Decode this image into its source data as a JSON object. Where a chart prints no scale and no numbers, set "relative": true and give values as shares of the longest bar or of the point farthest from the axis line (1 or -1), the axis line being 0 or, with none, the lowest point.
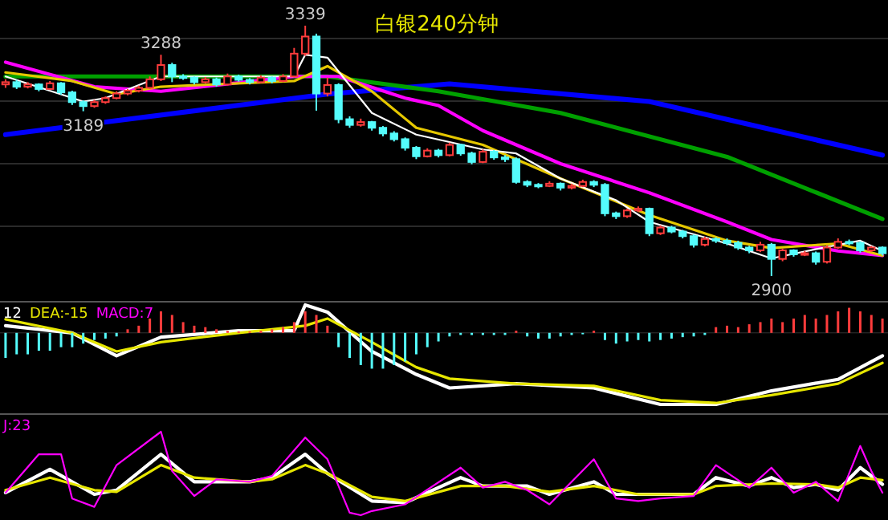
{
  "chart_data": [
    {
      "type": "candlestick",
      "title": "白银240分钟",
      "grid": true,
      "categories": [
        null,
        null,
        null,
        null,
        null,
        null,
        null,
        null,
        null,
        null,
        null,
        null,
        null,
        null,
        null,
        null,
        null,
        null,
        null,
        null,
        null,
        null,
        null,
        null,
        null,
        null,
        null,
        null,
        null,
        null,
        null,
        null,
        null,
        null,
        null,
        null,
        null,
        null,
        null,
        null,
        null,
        null,
        null,
        null,
        null,
        null,
        null,
        null,
        null,
        null,
        null,
        null,
        null,
        null,
        null,
        null,
        null,
        null,
        null,
        null,
        null,
        null,
        null,
        null,
        null,
        null,
        null,
        null,
        null,
        null,
        null,
        null,
        null,
        null,
        null,
        null,
        null,
        null,
        null,
        null
      ],
      "ohlc": [
        [
          3236,
          3245,
          3230,
          3240
        ],
        [
          3240,
          3244,
          3228,
          3232
        ],
        [
          3232,
          3240,
          3229,
          3236
        ],
        [
          3236,
          3238,
          3224,
          3228
        ],
        [
          3228,
          3242,
          3226,
          3238
        ],
        [
          3238,
          3240,
          3218,
          3222
        ],
        [
          3222,
          3225,
          3200,
          3205
        ],
        [
          3205,
          3208,
          3189,
          3198
        ],
        [
          3198,
          3209,
          3195,
          3205
        ],
        [
          3205,
          3215,
          3202,
          3212
        ],
        [
          3212,
          3224,
          3210,
          3220
        ],
        [
          3220,
          3228,
          3217,
          3225
        ],
        [
          3225,
          3234,
          3222,
          3230
        ],
        [
          3230,
          3250,
          3228,
          3245
        ],
        [
          3245,
          3288,
          3242,
          3270
        ],
        [
          3270,
          3274,
          3240,
          3250
        ],
        [
          3250,
          3254,
          3244,
          3248
        ],
        [
          3248,
          3250,
          3236,
          3240
        ],
        [
          3240,
          3249,
          3238,
          3245
        ],
        [
          3245,
          3248,
          3232,
          3236
        ],
        [
          3236,
          3255,
          3234,
          3250
        ],
        [
          3250,
          3253,
          3241,
          3244
        ],
        [
          3244,
          3247,
          3236,
          3240
        ],
        [
          3240,
          3252,
          3238,
          3248
        ],
        [
          3248,
          3250,
          3238,
          3242
        ],
        [
          3242,
          3254,
          3240,
          3250
        ],
        [
          3250,
          3300,
          3248,
          3290
        ],
        [
          3290,
          3339,
          3286,
          3320
        ],
        [
          3320,
          3325,
          3190,
          3220
        ],
        [
          3220,
          3248,
          3215,
          3235
        ],
        [
          3235,
          3238,
          3168,
          3175
        ],
        [
          3175,
          3180,
          3160,
          3165
        ],
        [
          3165,
          3176,
          3162,
          3170
        ],
        [
          3170,
          3172,
          3155,
          3160
        ],
        [
          3160,
          3163,
          3145,
          3150
        ],
        [
          3150,
          3154,
          3136,
          3140
        ],
        [
          3140,
          3143,
          3120,
          3125
        ],
        [
          3125,
          3128,
          3105,
          3110
        ],
        [
          3110,
          3124,
          3108,
          3120
        ],
        [
          3120,
          3123,
          3108,
          3112
        ],
        [
          3112,
          3134,
          3110,
          3130
        ],
        [
          3130,
          3132,
          3111,
          3115
        ],
        [
          3115,
          3118,
          3096,
          3100
        ],
        [
          3100,
          3122,
          3098,
          3118
        ],
        [
          3118,
          3121,
          3104,
          3108
        ],
        [
          3108,
          3112,
          3100,
          3105
        ],
        [
          3105,
          3108,
          3062,
          3065
        ],
        [
          3065,
          3068,
          3056,
          3060
        ],
        [
          3060,
          3063,
          3054,
          3058
        ],
        [
          3058,
          3066,
          3056,
          3062
        ],
        [
          3062,
          3064,
          3050,
          3055
        ],
        [
          3055,
          3062,
          3052,
          3058
        ],
        [
          3058,
          3069,
          3056,
          3065
        ],
        [
          3065,
          3068,
          3056,
          3060
        ],
        [
          3060,
          3063,
          3005,
          3010
        ],
        [
          3010,
          3013,
          3000,
          3005
        ],
        [
          3005,
          3018,
          3002,
          3015
        ],
        [
          3015,
          3022,
          3012,
          3018
        ],
        [
          3018,
          3020,
          2970,
          2975
        ],
        [
          2975,
          2989,
          2972,
          2985
        ],
        [
          2985,
          2988,
          2975,
          2978
        ],
        [
          2978,
          2981,
          2966,
          2970
        ],
        [
          2970,
          2973,
          2950,
          2955
        ],
        [
          2955,
          2969,
          2952,
          2965
        ],
        [
          2965,
          2968,
          2958,
          2962
        ],
        [
          2962,
          2966,
          2954,
          2958
        ],
        [
          2958,
          2962,
          2946,
          2950
        ],
        [
          2950,
          2953,
          2940,
          2945
        ],
        [
          2945,
          2960,
          2942,
          2955
        ],
        [
          2955,
          2958,
          2900,
          2930
        ],
        [
          2930,
          2948,
          2926,
          2945
        ],
        [
          2945,
          2947,
          2934,
          2938
        ],
        [
          2938,
          2944,
          2935,
          2940
        ],
        [
          2940,
          2943,
          2920,
          2925
        ],
        [
          2925,
          2954,
          2922,
          2950
        ],
        [
          2950,
          2966,
          2948,
          2960
        ],
        [
          2960,
          2964,
          2954,
          2958
        ],
        [
          2958,
          2961,
          2941,
          2945
        ],
        [
          2945,
          2953,
          2942,
          2950
        ],
        [
          2950,
          2952,
          2936,
          2940
        ]
      ],
      "colors": [
        "#ff3c3c",
        "#54fcfc",
        "#ff3c3c",
        "#54fcfc",
        "#ff3c3c",
        "#54fcfc",
        "#54fcfc",
        "#54fcfc",
        "#ff3c3c",
        "#ff3c3c",
        "#ff3c3c",
        "#ff3c3c",
        "#ff3c3c",
        "#ff3c3c",
        "#ff3c3c",
        "#54fcfc",
        "#54fcfc",
        "#54fcfc",
        "#ff3c3c",
        "#54fcfc",
        "#ff3c3c",
        "#54fcfc",
        "#54fcfc",
        "#ff3c3c",
        "#54fcfc",
        "#ff3c3c",
        "#ff3c3c",
        "#ff3c3c",
        "#54fcfc",
        "#ff3c3c",
        "#54fcfc",
        "#54fcfc",
        "#ff3c3c",
        "#54fcfc",
        "#54fcfc",
        "#54fcfc",
        "#54fcfc",
        "#54fcfc",
        "#ff3c3c",
        "#54fcfc",
        "#ff3c3c",
        "#54fcfc",
        "#54fcfc",
        "#ff3c3c",
        "#54fcfc",
        "#54fcfc",
        "#54fcfc",
        "#54fcfc",
        "#54fcfc",
        "#ff3c3c",
        "#54fcfc",
        "#ff3c3c",
        "#ff3c3c",
        "#54fcfc",
        "#54fcfc",
        "#54fcfc",
        "#ff3c3c",
        "#ff3c3c",
        "#54fcfc",
        "#ff3c3c",
        "#54fcfc",
        "#54fcfc",
        "#54fcfc",
        "#ff3c3c",
        "#54fcfc",
        "#54fcfc",
        "#54fcfc",
        "#54fcfc",
        "#ff3c3c",
        "#54fcfc",
        "#ff3c3c",
        "#54fcfc",
        "#ff3c3c",
        "#54fcfc",
        "#ff3c3c",
        "#ff3c3c",
        "#54fcfc",
        "#54fcfc",
        "#ff3c3c",
        "#54fcfc"
      ],
      "series": [
        {
          "type": "line",
          "color": "#0000ff",
          "values": [
            3148,
            null,
            null,
            null,
            null,
            null,
            null,
            null,
            null,
            null,
            null,
            null,
            null,
            null,
            null,
            null,
            null,
            null,
            null,
            null,
            null,
            null,
            null,
            null,
            null,
            null,
            null,
            null,
            null,
            3219,
            null,
            null,
            null,
            null,
            null,
            null,
            null,
            null,
            null,
            null,
            3237,
            null,
            null,
            null,
            null,
            null,
            null,
            null,
            null,
            null,
            null,
            null,
            null,
            null,
            null,
            null,
            null,
            null,
            3206,
            null,
            null,
            null,
            null,
            null,
            null,
            null,
            null,
            null,
            null,
            null,
            null,
            null,
            null,
            null,
            null,
            null,
            null,
            null,
            null,
            3112
          ]
        },
        {
          "type": "line",
          "color": "#00a000",
          "values": [
            3250,
            null,
            null,
            null,
            null,
            null,
            null,
            null,
            null,
            null,
            null,
            null,
            null,
            null,
            null,
            null,
            null,
            null,
            null,
            null,
            null,
            null,
            null,
            null,
            null,
            null,
            null,
            null,
            null,
            3250,
            null,
            null,
            null,
            null,
            null,
            null,
            null,
            null,
            null,
            3224,
            null,
            null,
            null,
            null,
            null,
            null,
            null,
            null,
            null,
            null,
            3186,
            null,
            null,
            null,
            null,
            null,
            null,
            null,
            null,
            null,
            null,
            null,
            null,
            null,
            null,
            3109,
            null,
            null,
            null,
            null,
            null,
            null,
            null,
            null,
            null,
            null,
            null,
            null,
            null,
            3000
          ]
        },
        {
          "type": "line",
          "color": "#ff00ff",
          "values": [
            3275,
            null,
            null,
            null,
            null,
            null,
            null,
            null,
            3232,
            null,
            null,
            null,
            null,
            null,
            3224,
            null,
            null,
            null,
            null,
            null,
            null,
            null,
            null,
            null,
            null,
            null,
            3250,
            null,
            null,
            null,
            3250,
            null,
            null,
            null,
            null,
            null,
            3212,
            null,
            null,
            3199,
            null,
            null,
            null,
            3155,
            null,
            null,
            null,
            null,
            null,
            null,
            3097,
            null,
            null,
            null,
            null,
            null,
            null,
            null,
            3046,
            null,
            null,
            null,
            null,
            null,
            null,
            2995,
            null,
            null,
            null,
            2964,
            null,
            null,
            null,
            null,
            null,
            2944,
            null,
            null,
            null,
            2936
          ]
        },
        {
          "type": "line",
          "color": "#e6c800",
          "values": [
            3257,
            null,
            null,
            null,
            null,
            null,
            3242,
            null,
            null,
            null,
            3219,
            null,
            null,
            null,
            3232,
            null,
            null,
            null,
            null,
            null,
            null,
            null,
            null,
            null,
            null,
            null,
            3242,
            null,
            null,
            3268,
            null,
            null,
            null,
            3224,
            null,
            null,
            null,
            3160,
            null,
            null,
            null,
            null,
            null,
            3130,
            null,
            null,
            null,
            null,
            null,
            null,
            3071,
            null,
            null,
            null,
            null,
            null,
            null,
            null,
            3007,
            null,
            null,
            null,
            null,
            null,
            null,
            2962,
            null,
            null,
            null,
            2949,
            null,
            null,
            null,
            null,
            null,
            2957,
            null,
            null,
            null,
            2936
          ]
        },
        {
          "type": "line",
          "color": "#ffffff",
          "values": [
            3250,
            null,
            null,
            null,
            null,
            null,
            null,
            3206,
            null,
            3212,
            null,
            null,
            null,
            null,
            3250,
            null,
            null,
            null,
            null,
            null,
            null,
            null,
            null,
            null,
            null,
            null,
            3250,
            3288,
            null,
            3283,
            null,
            null,
            null,
            3186,
            null,
            null,
            null,
            3148,
            null,
            null,
            null,
            null,
            null,
            3122,
            null,
            null,
            3115,
            null,
            null,
            null,
            3071,
            null,
            null,
            null,
            null,
            3033,
            null,
            null,
            2995,
            null,
            null,
            null,
            null,
            null,
            null,
            2957,
            null,
            null,
            null,
            2931,
            null,
            null,
            null,
            null,
            2951,
            null,
            null,
            2962,
            null,
            2944
          ]
        }
      ],
      "annotations": [
        {
          "text": "3339",
          "y": 3339
        },
        {
          "text": "3288",
          "y": 3288
        },
        {
          "text": "3189",
          "y": 3189
        },
        {
          "text": "2900",
          "y": 2900
        }
      ]
    },
    {
      "type": "bar",
      "relative": true,
      "categories": [
        null,
        null,
        null,
        null,
        null,
        null,
        null,
        null,
        null,
        null,
        null,
        null,
        null,
        null,
        null,
        null,
        null,
        null,
        null,
        null,
        null,
        null,
        null,
        null,
        null,
        null,
        null,
        null,
        null,
        null,
        null,
        null,
        null,
        null,
        null,
        null,
        null,
        null,
        null,
        null,
        null,
        null,
        null,
        null,
        null,
        null,
        null,
        null,
        null,
        null,
        null,
        null,
        null,
        null,
        null,
        null,
        null,
        null,
        null,
        null,
        null,
        null,
        null,
        null,
        null,
        null,
        null,
        null,
        null,
        null,
        null,
        null,
        null,
        null,
        null,
        null,
        null,
        null,
        null,
        null
      ],
      "series": [
        {
          "name": "12",
          "type": "line",
          "color": "#ffffff",
          "values": [
            0.1,
            null,
            null,
            null,
            null,
            null,
            0,
            null,
            null,
            null,
            -0.32,
            null,
            null,
            null,
            -0.06,
            null,
            null,
            null,
            null,
            null,
            null,
            0.03,
            null,
            null,
            null,
            null,
            0.03,
            0.39,
            null,
            0.29,
            null,
            null,
            null,
            -0.26,
            null,
            null,
            null,
            -0.58,
            null,
            null,
            -0.77,
            null,
            null,
            null,
            null,
            null,
            -0.71,
            null,
            null,
            null,
            null,
            null,
            null,
            -0.77,
            null,
            null,
            null,
            null,
            null,
            -1,
            null,
            null,
            null,
            null,
            -1,
            null,
            null,
            null,
            null,
            -0.81,
            null,
            null,
            null,
            null,
            null,
            -0.65,
            null,
            null,
            null,
            -0.32
          ]
        },
        {
          "name": "DEA:-15",
          "type": "line",
          "color": "#e6e600",
          "values": [
            0.19,
            null,
            null,
            null,
            null,
            null,
            0,
            null,
            null,
            null,
            -0.26,
            null,
            null,
            null,
            -0.13,
            null,
            null,
            null,
            null,
            null,
            null,
            0,
            null,
            null,
            null,
            null,
            null,
            0.1,
            null,
            0.2,
            null,
            null,
            null,
            -0.13,
            null,
            null,
            null,
            -0.48,
            null,
            null,
            -0.64,
            null,
            null,
            null,
            null,
            null,
            -0.71,
            null,
            null,
            null,
            null,
            null,
            null,
            -0.74,
            null,
            null,
            null,
            null,
            null,
            -0.94,
            null,
            null,
            null,
            null,
            -0.98,
            null,
            null,
            null,
            null,
            -0.87,
            null,
            null,
            null,
            null,
            null,
            -0.71,
            null,
            null,
            null,
            -0.42
          ]
        },
        {
          "name": "MACD:7",
          "type": "bar",
          "color": "#ff00ff",
          "values": [
            -0.35,
            -0.3,
            -0.3,
            -0.25,
            -0.25,
            -0.2,
            -0.2,
            -0.15,
            -0.1,
            -0.08,
            -0.05,
            0.05,
            0.1,
            0.2,
            0.3,
            0.25,
            0.15,
            0.1,
            0.08,
            0.05,
            0.03,
            0.02,
            0.02,
            0.03,
            0.05,
            0.08,
            0.15,
            0.3,
            0.25,
            0.1,
            -0.2,
            -0.35,
            -0.45,
            -0.5,
            -0.5,
            -0.45,
            -0.4,
            -0.3,
            -0.2,
            -0.12,
            -0.05,
            -0.03,
            -0.03,
            -0.03,
            -0.03,
            -0.03,
            0.03,
            -0.05,
            -0.08,
            -0.08,
            -0.05,
            -0.03,
            -0.02,
            0.03,
            -0.1,
            -0.15,
            -0.12,
            -0.1,
            -0.12,
            -0.1,
            -0.08,
            -0.06,
            -0.05,
            -0.03,
            0.08,
            0.1,
            0.08,
            0.12,
            0.15,
            0.2,
            0.15,
            0.2,
            0.25,
            0.2,
            0.25,
            0.3,
            0.35,
            0.3,
            0.25,
            0.2
          ],
          "colors": [
            "#54fcfc",
            "#54fcfc",
            "#54fcfc",
            "#54fcfc",
            "#54fcfc",
            "#54fcfc",
            "#54fcfc",
            "#54fcfc",
            "#54fcfc",
            "#54fcfc",
            "#54fcfc",
            "#ff3c3c",
            "#ff3c3c",
            "#ff3c3c",
            "#ff3c3c",
            "#ff3c3c",
            "#ff3c3c",
            "#ff3c3c",
            "#ff3c3c",
            "#ff3c3c",
            "#ff3c3c",
            "#ff3c3c",
            "#ff3c3c",
            "#ff3c3c",
            "#ff3c3c",
            "#ff3c3c",
            "#ff3c3c",
            "#ff3c3c",
            "#ff3c3c",
            "#ff3c3c",
            "#54fcfc",
            "#54fcfc",
            "#54fcfc",
            "#54fcfc",
            "#54fcfc",
            "#54fcfc",
            "#54fcfc",
            "#54fcfc",
            "#54fcfc",
            "#54fcfc",
            "#54fcfc",
            "#54fcfc",
            "#54fcfc",
            "#54fcfc",
            "#54fcfc",
            "#54fcfc",
            "#ff3c3c",
            "#54fcfc",
            "#54fcfc",
            "#54fcfc",
            "#54fcfc",
            "#54fcfc",
            "#54fcfc",
            "#ff3c3c",
            "#54fcfc",
            "#54fcfc",
            "#54fcfc",
            "#54fcfc",
            "#54fcfc",
            "#54fcfc",
            "#54fcfc",
            "#54fcfc",
            "#54fcfc",
            "#54fcfc",
            "#ff3c3c",
            "#ff3c3c",
            "#ff3c3c",
            "#ff3c3c",
            "#ff3c3c",
            "#ff3c3c",
            "#ff3c3c",
            "#ff3c3c",
            "#ff3c3c",
            "#ff3c3c",
            "#ff3c3c",
            "#ff3c3c",
            "#ff3c3c",
            "#ff3c3c",
            "#ff3c3c",
            "#ff3c3c"
          ]
        }
      ]
    },
    {
      "type": "line",
      "relative": true,
      "categories": [
        null,
        null,
        null,
        null,
        null,
        null,
        null,
        null,
        null,
        null,
        null,
        null,
        null,
        null,
        null,
        null,
        null,
        null,
        null,
        null,
        null,
        null,
        null,
        null,
        null,
        null,
        null,
        null,
        null,
        null,
        null,
        null,
        null,
        null,
        null,
        null,
        null,
        null,
        null,
        null,
        null,
        null,
        null,
        null,
        null,
        null,
        null,
        null,
        null,
        null,
        null,
        null,
        null,
        null,
        null,
        null,
        null,
        null,
        null,
        null,
        null,
        null,
        null,
        null,
        null,
        null,
        null,
        null,
        null,
        null,
        null,
        null,
        null,
        null,
        null,
        null,
        null,
        null,
        null,
        null
      ],
      "series": [
        {
          "color": "#ffffff",
          "values": [
            0.27,
            null,
            null,
            null,
            0.55,
            null,
            null,
            null,
            0.25,
            null,
            0.3,
            null,
            null,
            null,
            0.73,
            null,
            null,
            0.4,
            null,
            0.4,
            null,
            null,
            0.4,
            null,
            0.45,
            null,
            null,
            0.73,
            null,
            0.5,
            null,
            null,
            null,
            0.17,
            null,
            null,
            0.15,
            null,
            null,
            null,
            null,
            0.45,
            null,
            0.35,
            null,
            null,
            null,
            0.35,
            null,
            0.25,
            null,
            null,
            null,
            0.4,
            null,
            0.25,
            null,
            null,
            null,
            0.25,
            null,
            null,
            0.25,
            null,
            0.45,
            null,
            null,
            0.35,
            null,
            0.45,
            null,
            0.33,
            null,
            0.37,
            null,
            0.3,
            null,
            0.57,
            null,
            0.37
          ]
        },
        {
          "color": "#e6e600",
          "values": [
            0.3,
            null,
            null,
            null,
            0.45,
            null,
            null,
            null,
            0.3,
            null,
            0.28,
            null,
            null,
            null,
            0.6,
            null,
            null,
            0.45,
            null,
            null,
            null,
            null,
            0.4,
            null,
            0.43,
            null,
            null,
            0.6,
            null,
            0.5,
            null,
            null,
            null,
            0.22,
            null,
            null,
            0.17,
            null,
            null,
            null,
            null,
            0.35,
            null,
            null,
            null,
            0.35,
            null,
            null,
            null,
            0.28,
            null,
            null,
            null,
            0.35,
            null,
            null,
            null,
            0.25,
            null,
            null,
            null,
            null,
            0.25,
            null,
            0.35,
            null,
            null,
            null,
            null,
            0.38,
            null,
            null,
            null,
            0.37,
            null,
            0.33,
            null,
            0.45,
            null,
            0.42
          ]
        },
        {
          "name": "J:23",
          "color": "#ff00ff",
          "values": [
            0.27,
            null,
            null,
            0.73,
            null,
            0.73,
            0.2,
            null,
            0.1,
            null,
            0.6,
            null,
            null,
            null,
            1,
            0.53,
            null,
            0.23,
            null,
            0.43,
            null,
            null,
            0.4,
            null,
            0.47,
            null,
            null,
            0.93,
            null,
            0.67,
            null,
            0.03,
            0,
            0.05,
            null,
            null,
            0.13,
            null,
            null,
            null,
            null,
            0.57,
            null,
            0.33,
            null,
            0.4,
            null,
            0.3,
            null,
            0.13,
            null,
            null,
            null,
            0.67,
            null,
            0.2,
            null,
            0.17,
            null,
            0.2,
            null,
            null,
            0.23,
            null,
            0.6,
            null,
            null,
            0.33,
            null,
            0.57,
            null,
            0.27,
            null,
            0.4,
            null,
            0.17,
            null,
            0.83,
            0.53,
            0.27
          ]
        }
      ]
    }
  ]
}
